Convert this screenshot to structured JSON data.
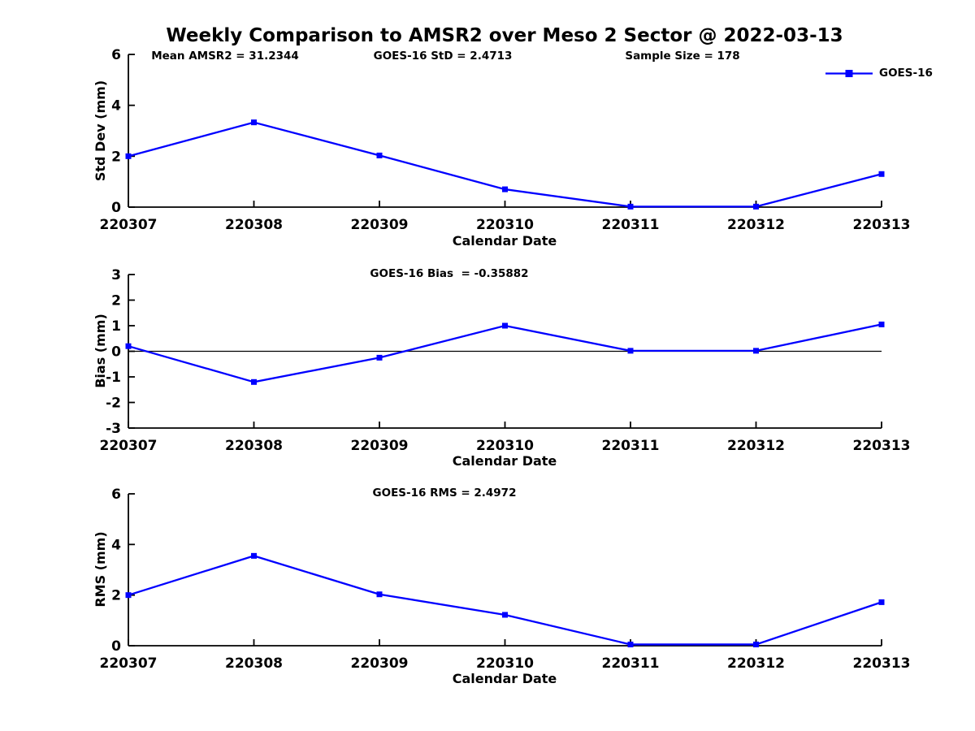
{
  "figure": {
    "title": "Weekly Comparison to AMSR2 over Meso 2 Sector @ 2022-03-13",
    "background_color": "#ffffff"
  },
  "colors": {
    "series": "#0000ff",
    "axis": "#000000",
    "text": "#000000"
  },
  "legend": {
    "label": "GOES-16",
    "marker": "filled-square",
    "color": "#0000ff",
    "position": "top-right"
  },
  "chart_data": [
    {
      "type": "line",
      "name": "std-dev",
      "annotations": [
        "Mean AMSR2 = 31.2344",
        "GOES-16 StD = 2.4713",
        "Sample Size = 178"
      ],
      "categories": [
        "220307",
        "220308",
        "220309",
        "220310",
        "220311",
        "220312",
        "220313"
      ],
      "series": [
        {
          "name": "GOES-16",
          "values": [
            2.0,
            3.33,
            2.03,
            0.7,
            0.02,
            0.02,
            1.3
          ]
        }
      ],
      "xlabel": "Calendar Date",
      "ylabel": "Std Dev (mm)",
      "yticks": [
        0,
        2,
        4,
        6
      ],
      "ylim": [
        0,
        6
      ],
      "zero_line": false,
      "grid": false,
      "marker": "square"
    },
    {
      "type": "line",
      "name": "bias",
      "annotations": [
        "GOES-16 Bias  = -0.35882"
      ],
      "categories": [
        "220307",
        "220308",
        "220309",
        "220310",
        "220311",
        "220312",
        "220313"
      ],
      "series": [
        {
          "name": "GOES-16",
          "values": [
            0.2,
            -1.2,
            -0.25,
            1.0,
            0.02,
            0.02,
            1.05
          ]
        }
      ],
      "xlabel": "Calendar Date",
      "ylabel": "Bias (mm)",
      "yticks": [
        -3,
        -2,
        -1,
        0,
        1,
        2,
        3
      ],
      "ylim": [
        -3,
        3
      ],
      "zero_line": true,
      "grid": false,
      "marker": "square"
    },
    {
      "type": "line",
      "name": "rms",
      "annotations": [
        "GOES-16 RMS = 2.4972"
      ],
      "categories": [
        "220307",
        "220308",
        "220309",
        "220310",
        "220311",
        "220312",
        "220313"
      ],
      "series": [
        {
          "name": "GOES-16",
          "values": [
            2.0,
            3.55,
            2.03,
            1.22,
            0.05,
            0.05,
            1.72
          ]
        }
      ],
      "xlabel": "Calendar Date",
      "ylabel": "RMS (mm)",
      "yticks": [
        0,
        2,
        4,
        6
      ],
      "ylim": [
        0,
        6
      ],
      "zero_line": false,
      "grid": false,
      "marker": "square"
    }
  ]
}
